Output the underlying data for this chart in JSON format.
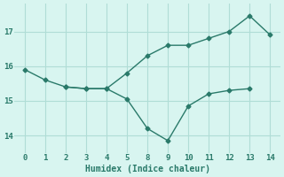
{
  "line1_x_idx": [
    0,
    1,
    2,
    3,
    4,
    5,
    6,
    7,
    8,
    9,
    10,
    11,
    12
  ],
  "line1_y": [
    15.9,
    15.6,
    15.4,
    15.35,
    15.35,
    15.8,
    16.3,
    16.6,
    16.6,
    16.8,
    17.0,
    17.45,
    16.9
  ],
  "line2_x_idx": [
    2,
    3,
    4,
    5,
    6,
    7,
    8,
    9,
    10,
    11
  ],
  "line2_y": [
    15.4,
    15.35,
    15.35,
    15.05,
    14.2,
    13.85,
    14.85,
    15.2,
    15.3,
    15.35
  ],
  "xtick_positions": [
    0,
    1,
    2,
    3,
    4,
    5,
    6,
    7,
    8,
    9,
    10,
    11,
    12
  ],
  "xtick_labels": [
    "0",
    "1",
    "2",
    "3",
    "4",
    "5",
    "8",
    "9",
    "10",
    "11",
    "12",
    "13",
    "14"
  ],
  "yticks": [
    14,
    15,
    16,
    17
  ],
  "line_color": "#2a7a6a",
  "bg_color": "#d8f5f0",
  "grid_color": "#b0ddd6",
  "xlabel": "Humidex (Indice chaleur)",
  "xlim": [
    -0.5,
    12.5
  ],
  "ylim": [
    13.5,
    17.8
  ]
}
